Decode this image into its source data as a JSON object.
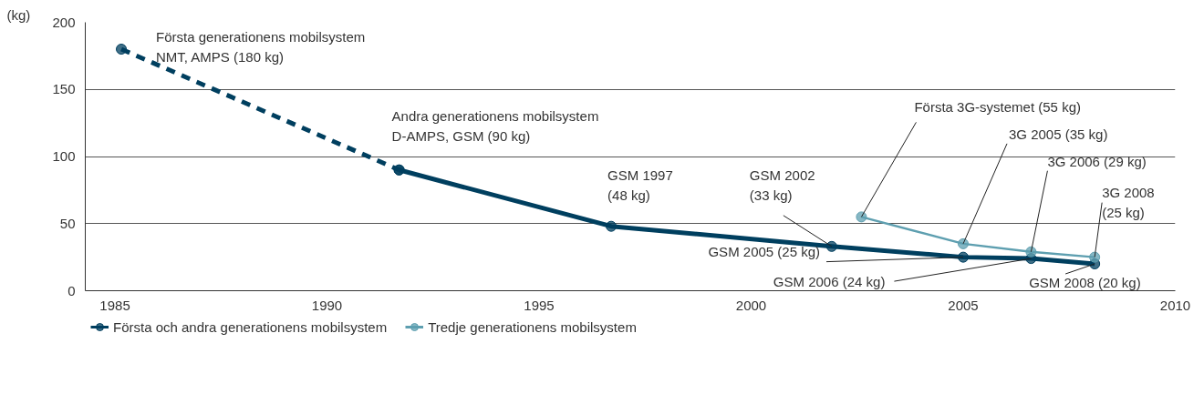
{
  "chart_data": {
    "type": "line",
    "ylabel": "(kg)",
    "xlim": [
      1984.3,
      2010
    ],
    "xticks": [
      1985,
      1990,
      1995,
      2000,
      2005,
      2010
    ],
    "ylim": [
      0,
      200
    ],
    "yticks": [
      0,
      50,
      100,
      150,
      200
    ],
    "grid": "y",
    "legend": "bottom left",
    "marker": "circle",
    "series": [
      {
        "color": "#003f5f",
        "line_style": "dashed",
        "x": [
          1985.15,
          1991.7
        ],
        "values": [
          180,
          90
        ]
      },
      {
        "name": "Första och andra generationens mobilsystem",
        "color": "#003f5f",
        "line_style": "solid",
        "x": [
          1991.7,
          1996.7,
          2001.9,
          2005.0,
          2006.6,
          2008.1
        ],
        "values": [
          90,
          48,
          33,
          25,
          24,
          20
        ]
      },
      {
        "name": "Tredje generationens mobilsystem",
        "color": "#5e9fb0",
        "line_style": "solid",
        "x": [
          2002.6,
          2005.0,
          2006.6,
          2008.1
        ],
        "values": [
          55,
          35,
          29,
          25
        ]
      }
    ],
    "annotations": [
      {
        "text": "Första generationens mobilsystem\nNMT, AMPS (180 kg)",
        "x": 1985.15,
        "y": 180
      },
      {
        "text": "Andra generationens mobilsystem\nD-AMPS, GSM (90 kg)",
        "x": 1991.7,
        "y": 90
      },
      {
        "text": "GSM 1997\n(48 kg)",
        "x": 1996.7,
        "y": 48
      },
      {
        "text": "GSM 2002\n(33 kg)",
        "x": 2001.9,
        "y": 33
      },
      {
        "text": "GSM 2005 (25 kg)",
        "x": 2005.0,
        "y": 25
      },
      {
        "text": "GSM 2006 (24 kg)",
        "x": 2006.6,
        "y": 24
      },
      {
        "text": "GSM 2008 (20 kg)",
        "x": 2008.1,
        "y": 20
      },
      {
        "text": "Första 3G-systemet (55 kg)",
        "x": 2002.6,
        "y": 55
      },
      {
        "text": "3G 2005 (35 kg)",
        "x": 2005.0,
        "y": 35
      },
      {
        "text": "3G 2006 (29 kg)",
        "x": 2006.6,
        "y": 29
      },
      {
        "text": "3G 2008\n(25 kg)",
        "x": 2008.1,
        "y": 25
      }
    ]
  }
}
